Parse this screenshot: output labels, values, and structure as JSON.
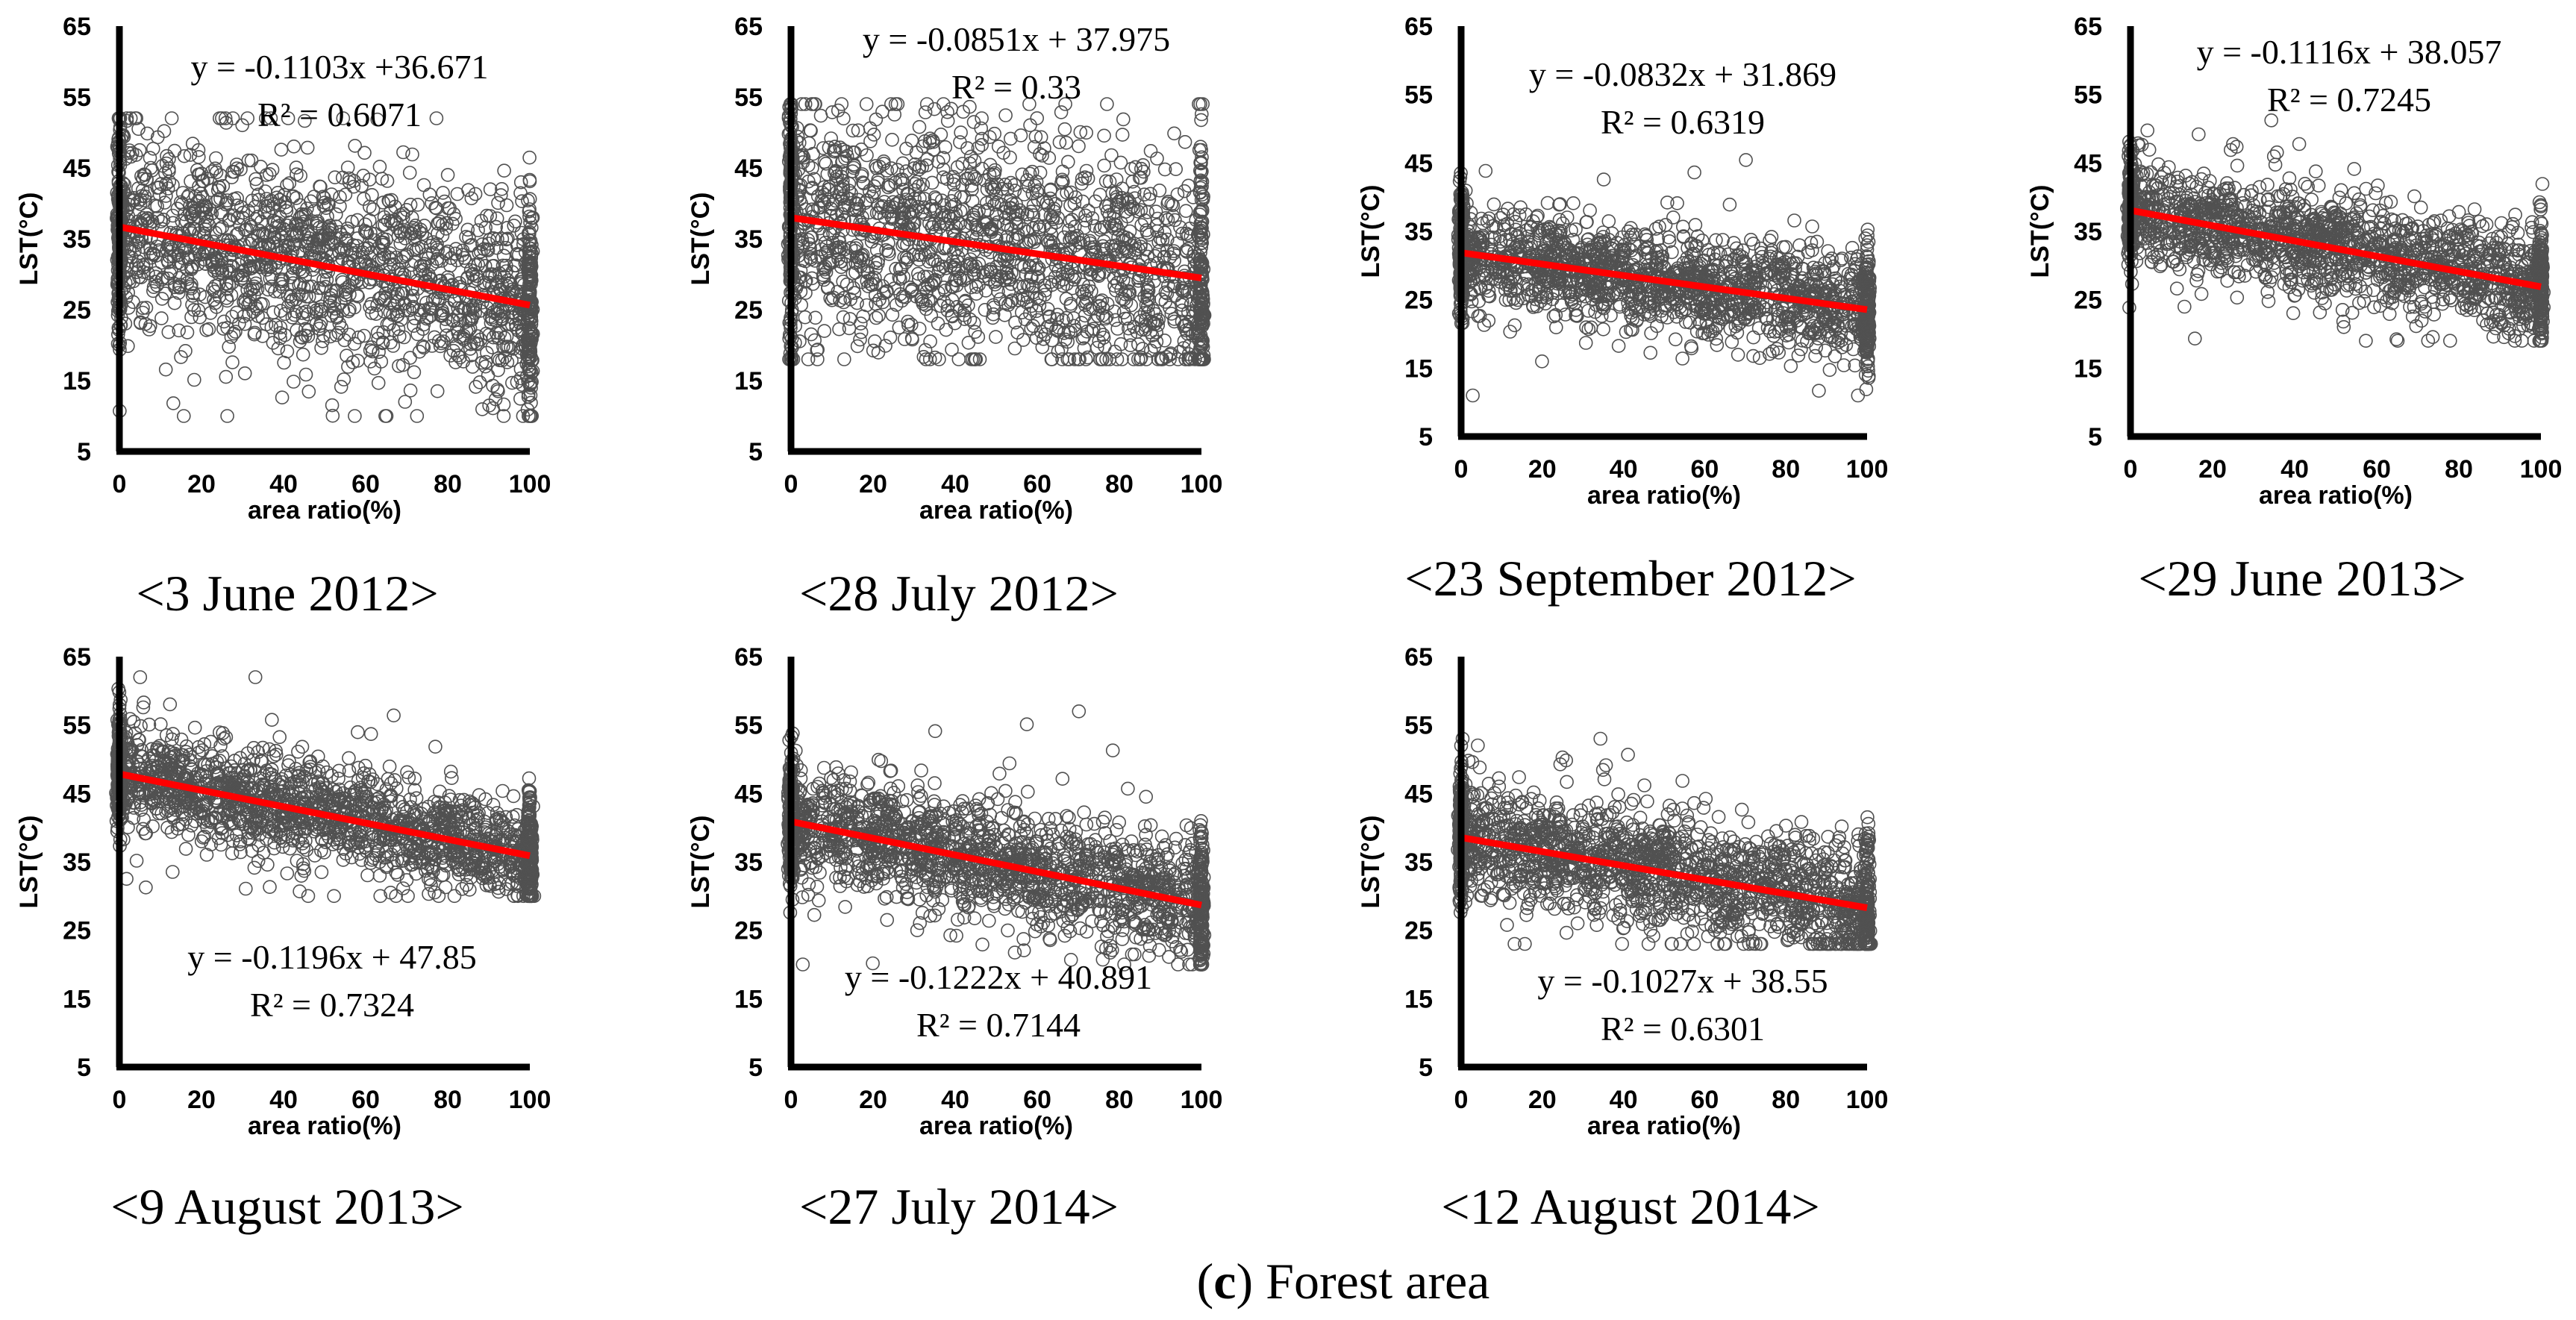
{
  "figure_caption": {
    "label": "c",
    "text": "Forest area"
  },
  "chart_data": [
    {
      "type": "scatter",
      "date": "<3 June 2012>",
      "xlabel": "area ratio(%)",
      "ylabel": "LST(°C)",
      "xlim": [
        0,
        100
      ],
      "ylim": [
        5,
        65
      ],
      "xticks": [
        0,
        20,
        40,
        60,
        80,
        100
      ],
      "yticks": [
        5,
        15,
        25,
        35,
        45,
        55,
        65
      ],
      "equation": "y = -0.1103x +36.671",
      "r_squared": "R² = 0.6071",
      "trend": {
        "slope": -0.1103,
        "intercept": 36.671,
        "color": "#ff0000"
      },
      "scatter": {
        "spread": 6.5,
        "wide_spread": 13,
        "min": 10,
        "max": 52,
        "marker": "open-circle"
      },
      "legend": "none",
      "grid": false
    },
    {
      "type": "scatter",
      "date": "<28 July 2012>",
      "xlabel": "area ratio(%)",
      "ylabel": "LST(°C)",
      "xlim": [
        0,
        100
      ],
      "ylim": [
        5,
        65
      ],
      "xticks": [
        0,
        20,
        40,
        60,
        80,
        100
      ],
      "yticks": [
        5,
        15,
        25,
        35,
        45,
        55,
        65
      ],
      "equation": "y = -0.0851x + 37.975",
      "r_squared": "R² = 0.33",
      "trend": {
        "slope": -0.0851,
        "intercept": 37.975,
        "color": "#ff0000"
      },
      "scatter": {
        "spread": 8,
        "wide_spread": 13,
        "min": 18,
        "max": 54,
        "marker": "open-circle"
      },
      "legend": "none",
      "grid": false
    },
    {
      "type": "scatter",
      "date": "<23 September 2012>",
      "xlabel": "area ratio(%)",
      "ylabel": "LST(°C)",
      "xlim": [
        0,
        100
      ],
      "ylim": [
        5,
        65
      ],
      "xticks": [
        0,
        20,
        40,
        60,
        80,
        100
      ],
      "yticks": [
        5,
        15,
        25,
        35,
        45,
        55,
        65
      ],
      "equation": "y = -0.0832x + 31.869",
      "r_squared": "R² = 0.6319",
      "trend": {
        "slope": -0.0832,
        "intercept": 31.869,
        "color": "#ff0000"
      },
      "scatter": {
        "spread": 3.5,
        "wide_spread": 7,
        "min": 11,
        "max": 46,
        "marker": "open-circle"
      },
      "legend": "none",
      "grid": false
    },
    {
      "type": "scatter",
      "date": "<29 June 2013>",
      "xlabel": "area ratio(%)",
      "ylabel": "LST(°C)",
      "xlim": [
        0,
        100
      ],
      "ylim": [
        5,
        65
      ],
      "xticks": [
        0,
        20,
        40,
        60,
        80,
        100
      ],
      "yticks": [
        5,
        15,
        25,
        35,
        45,
        55,
        65
      ],
      "equation": "y = -0.1116x + 38.057",
      "r_squared": "R² = 0.7245",
      "trend": {
        "slope": -0.1116,
        "intercept": 38.057,
        "color": "#ff0000"
      },
      "scatter": {
        "spread": 3.5,
        "wide_spread": 7,
        "min": 19,
        "max": 52,
        "marker": "open-circle"
      },
      "legend": "none",
      "grid": false
    },
    {
      "type": "scatter",
      "date": "<9 August 2013>",
      "xlabel": "area ratio(%)",
      "ylabel": "LST(°C)",
      "xlim": [
        0,
        100
      ],
      "ylim": [
        5,
        65
      ],
      "xticks": [
        0,
        20,
        40,
        60,
        80,
        100
      ],
      "yticks": [
        5,
        15,
        25,
        35,
        45,
        55,
        65
      ],
      "equation": "y = -0.1196x + 47.85",
      "r_squared": "R² = 0.7324",
      "trend": {
        "slope": -0.1196,
        "intercept": 47.85,
        "color": "#ff0000"
      },
      "scatter": {
        "spread": 3.5,
        "wide_spread": 7,
        "min": 30,
        "max": 62,
        "marker": "open-circle"
      },
      "legend": "none",
      "grid": false
    },
    {
      "type": "scatter",
      "date": "<27 July 2014>",
      "xlabel": "area ratio(%)",
      "ylabel": "LST(°C)",
      "xlim": [
        0,
        100
      ],
      "ylim": [
        5,
        65
      ],
      "xticks": [
        0,
        20,
        40,
        60,
        80,
        100
      ],
      "yticks": [
        5,
        15,
        25,
        35,
        45,
        55,
        65
      ],
      "equation": "y = -0.1222x + 40.891",
      "r_squared": "R² = 0.7144",
      "trend": {
        "slope": -0.1222,
        "intercept": 40.891,
        "color": "#ff0000"
      },
      "scatter": {
        "spread": 4,
        "wide_spread": 9,
        "min": 20,
        "max": 57,
        "marker": "open-circle"
      },
      "legend": "none",
      "grid": false
    },
    {
      "type": "scatter",
      "date": "<12 August 2014>",
      "xlabel": "area ratio(%)",
      "ylabel": "LST(°C)",
      "xlim": [
        0,
        100
      ],
      "ylim": [
        5,
        65
      ],
      "xticks": [
        0,
        20,
        40,
        60,
        80,
        100
      ],
      "yticks": [
        5,
        15,
        25,
        35,
        45,
        55,
        65
      ],
      "equation": "y = -0.1027x + 38.55",
      "r_squared": "R² = 0.6301",
      "trend": {
        "slope": -0.1027,
        "intercept": 38.55,
        "color": "#ff0000"
      },
      "scatter": {
        "spread": 4,
        "wide_spread": 8,
        "min": 23,
        "max": 53,
        "marker": "open-circle"
      },
      "legend": "none",
      "grid": false
    }
  ]
}
